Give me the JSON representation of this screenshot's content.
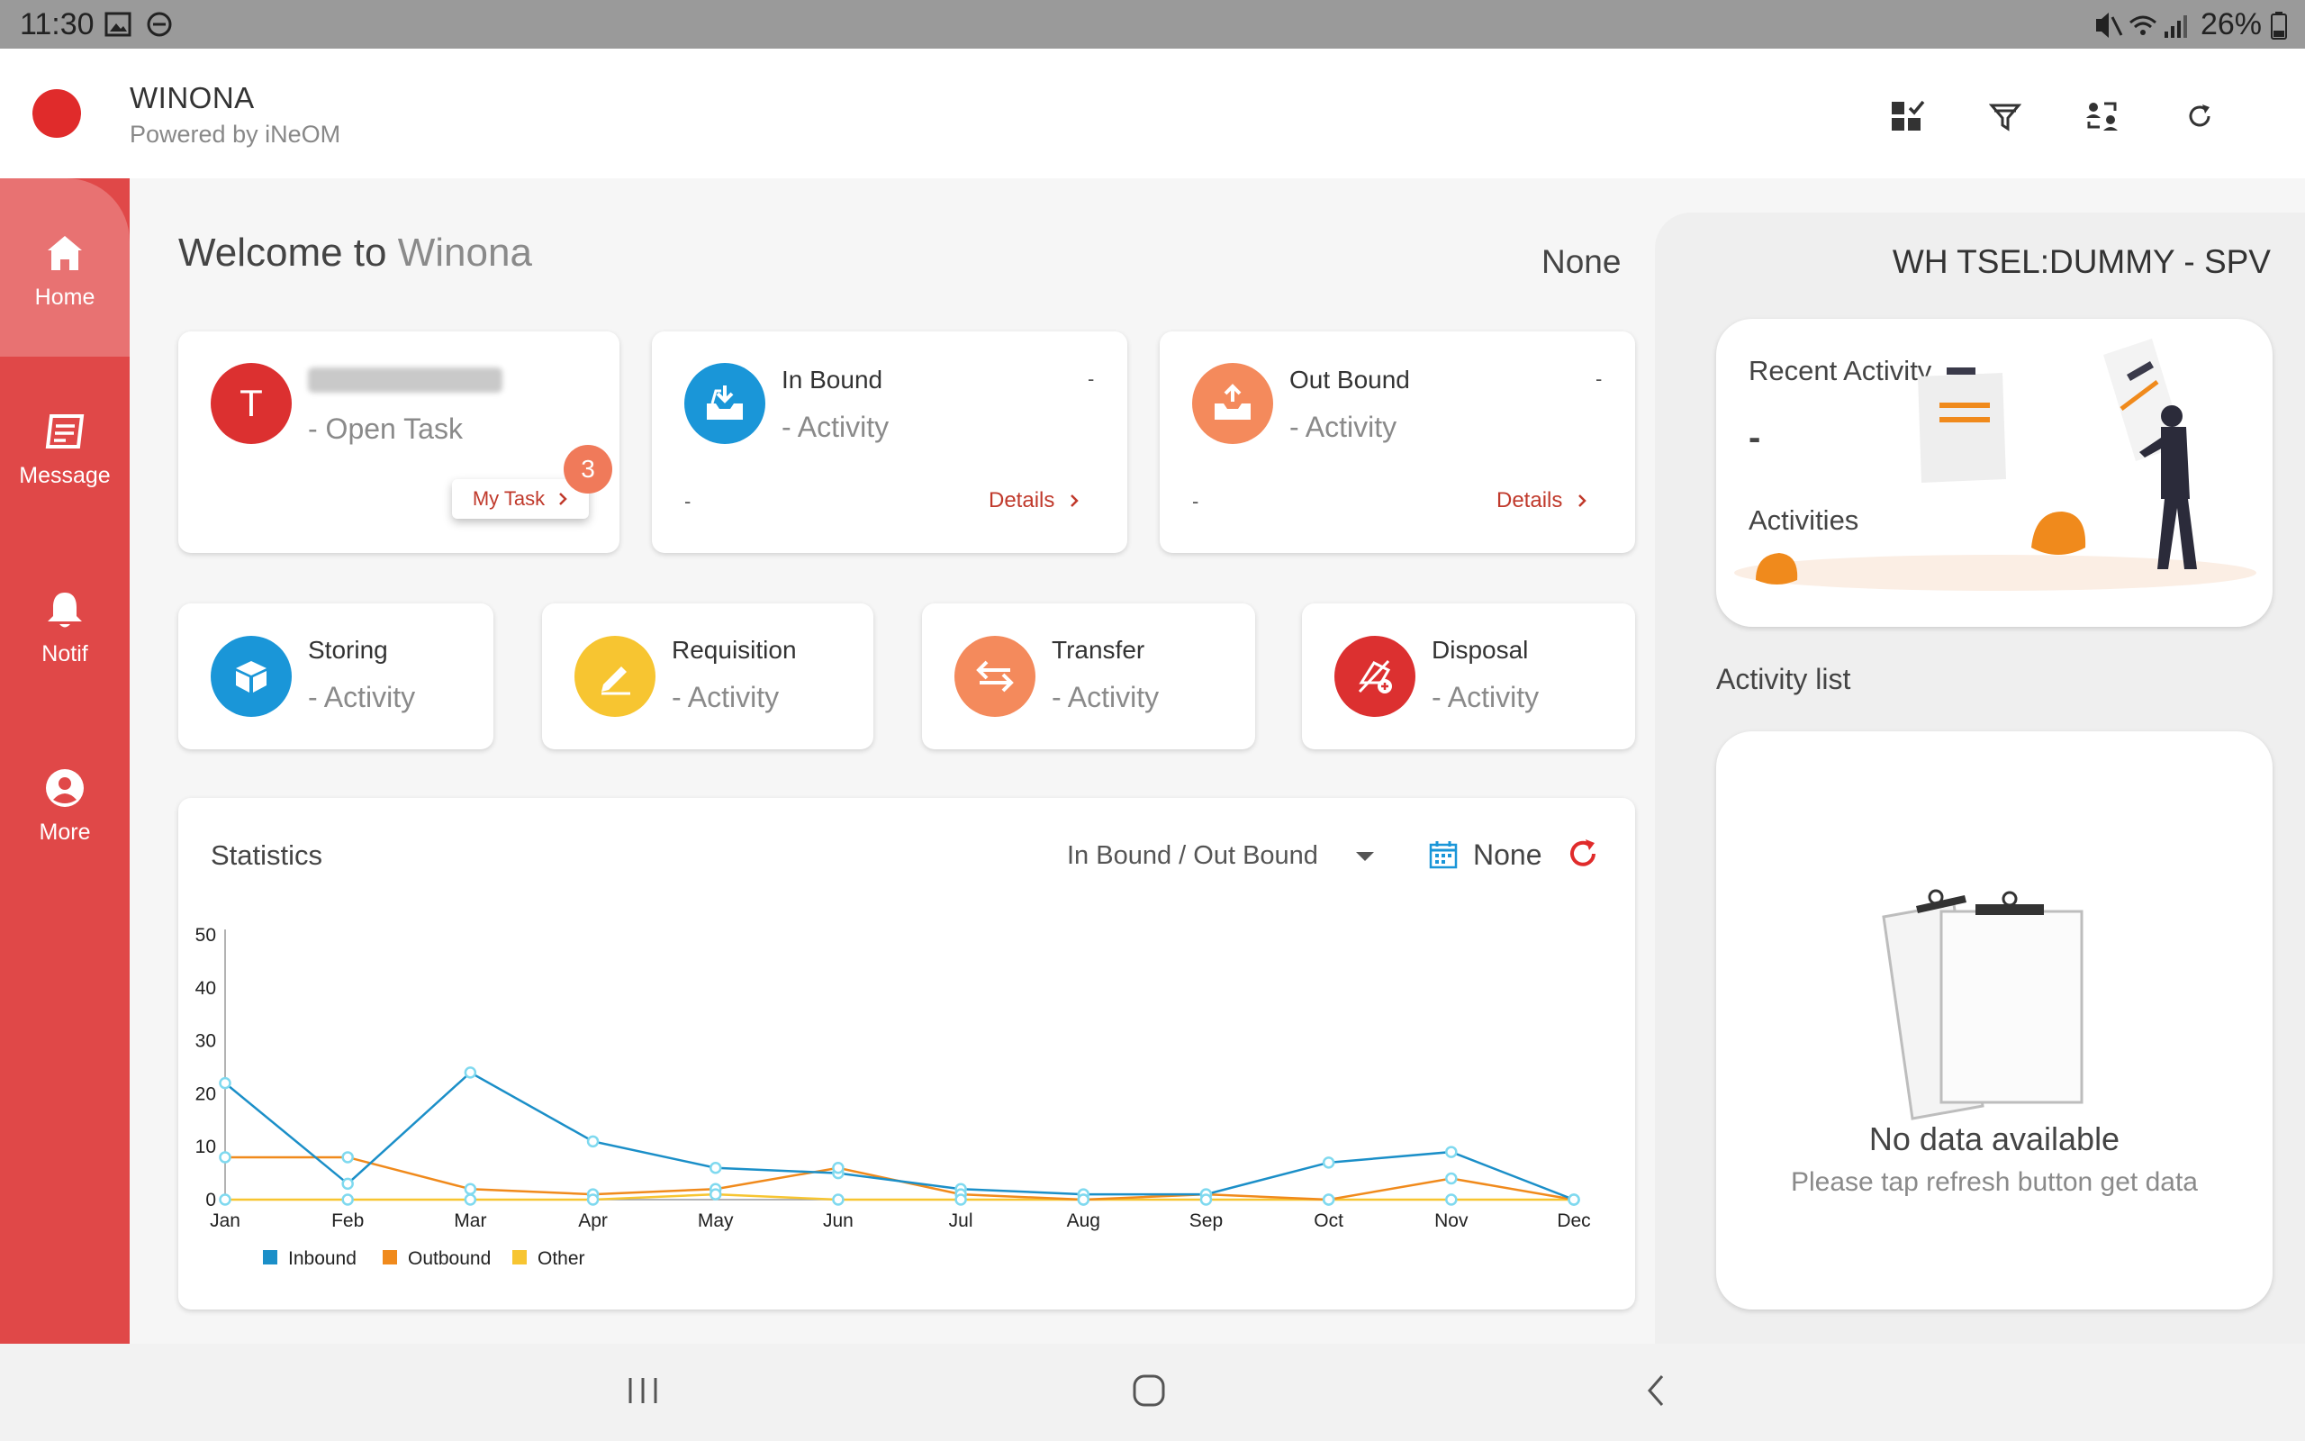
{
  "status_bar": {
    "time": "11:30",
    "battery": "26%"
  },
  "header": {
    "title": "WINONA",
    "subtitle": "Powered by iNeOM"
  },
  "sidebar": {
    "items": [
      {
        "label": "Home",
        "icon": "home-icon"
      },
      {
        "label": "Message",
        "icon": "message-icon"
      },
      {
        "label": "Notif",
        "icon": "bell-icon"
      },
      {
        "label": "More",
        "icon": "user-circle-icon"
      }
    ]
  },
  "main": {
    "welcome_prefix": "Welcome to",
    "welcome_name": "Winona",
    "top_right_value": "None",
    "user_card": {
      "avatar_letter": "T",
      "subtitle": "- Open Task",
      "badge": "3",
      "button": "My Task"
    },
    "in_bound": {
      "title": "In Bound",
      "subtitle": "- Activity",
      "corner": "-",
      "footer": "-",
      "details": "Details"
    },
    "out_bound": {
      "title": "Out Bound",
      "subtitle": "- Activity",
      "corner": "-",
      "footer": "-",
      "details": "Details"
    },
    "activities": [
      {
        "title": "Storing",
        "subtitle": "- Activity",
        "color": "#1a96d8"
      },
      {
        "title": "Requisition",
        "subtitle": "- Activity",
        "color": "#f7c531"
      },
      {
        "title": "Transfer",
        "subtitle": "- Activity",
        "color": "#f48a5c"
      },
      {
        "title": "Disposal",
        "subtitle": "- Activity",
        "color": "#dc3030"
      }
    ]
  },
  "statistics": {
    "title": "Statistics",
    "selector": "In Bound / Out Bound",
    "date": "None"
  },
  "chart_data": {
    "type": "line",
    "categories": [
      "Jan",
      "Feb",
      "Mar",
      "Apr",
      "May",
      "Jun",
      "Jul",
      "Aug",
      "Sep",
      "Oct",
      "Nov",
      "Dec"
    ],
    "y_ticks": [
      0,
      10,
      20,
      30,
      40,
      50
    ],
    "ylim": [
      0,
      50
    ],
    "series": [
      {
        "name": "Inbound",
        "color": "#1b8fc8",
        "values": [
          22,
          3,
          24,
          11,
          6,
          5,
          2,
          1,
          1,
          7,
          9,
          0
        ]
      },
      {
        "name": "Outbound",
        "color": "#f08a1c",
        "values": [
          8,
          8,
          2,
          1,
          2,
          6,
          1,
          0,
          1,
          0,
          4,
          0
        ]
      },
      {
        "name": "Other",
        "color": "#f7c531",
        "values": [
          0,
          0,
          0,
          0,
          1,
          0,
          0,
          0,
          0,
          0,
          0,
          0
        ]
      }
    ],
    "legend": "bottom-left",
    "grid": false
  },
  "right_panel": {
    "title": "WH TSEL:DUMMY - SPV",
    "recent_title": "Recent Activity",
    "recent_value": "-",
    "recent_label": "Activities",
    "activity_list_title": "Activity list",
    "empty_title": "No data available",
    "empty_sub": "Please tap refresh button get data"
  }
}
